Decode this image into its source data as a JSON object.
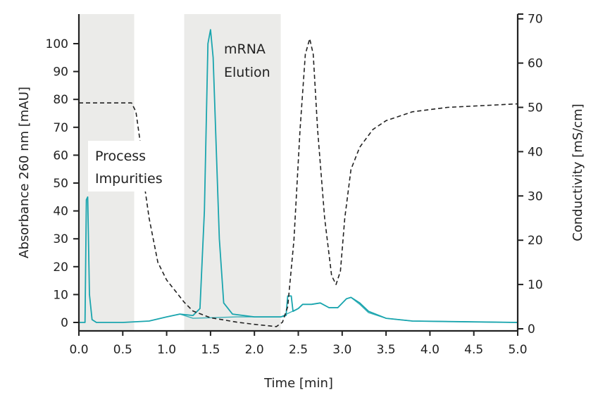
{
  "chart_data": {
    "type": "line",
    "xlabel": "Time [min]",
    "ylabel_left": "Absorbance 260 nm [mAU]",
    "ylabel_right": "Conductivity [mS/cm]",
    "xlim": [
      0,
      5
    ],
    "ylim_left": [
      -2,
      108
    ],
    "ylim_right": [
      0,
      70
    ],
    "x_ticks": [
      "0.0",
      "0.5",
      "1.0",
      "1.5",
      "2.0",
      "2.5",
      "3.0",
      "3.5",
      "4.0",
      "4.5",
      "5.0"
    ],
    "y_left_ticks": [
      "0",
      "10",
      "20",
      "30",
      "40",
      "50",
      "60",
      "70",
      "80",
      "90",
      "100"
    ],
    "y_right_ticks": [
      "0",
      "10",
      "20",
      "30",
      "40",
      "50",
      "60",
      "70"
    ],
    "grid": false,
    "colors": {
      "absorbance": "#1aa5ae",
      "conductivity": "#222222",
      "shade": "#ebebe9"
    },
    "regions": [
      {
        "label_lines": [
          "Process",
          "Impurities"
        ],
        "x": [
          0,
          0.63
        ]
      },
      {
        "label_lines": [
          "mRNA",
          "Elution"
        ],
        "x": [
          1.2,
          2.3
        ]
      }
    ],
    "series": [
      {
        "axis": "left",
        "style": "solid",
        "x": [
          0,
          0.07,
          0.085,
          0.1,
          0.12,
          0.15,
          0.2,
          0.5,
          0.8,
          1.0,
          1.15,
          1.3,
          1.38,
          1.43,
          1.47,
          1.5,
          1.53,
          1.6,
          1.65,
          1.75,
          2.0,
          2.3,
          2.36,
          2.38,
          2.42,
          2.44,
          2.5,
          2.55,
          2.65,
          2.75,
          2.85,
          2.95,
          3.05,
          3.1,
          3.2,
          3.3,
          3.5,
          3.8,
          4.5,
          5.0
        ],
        "y": [
          0,
          0,
          44,
          45,
          10,
          1,
          0,
          0,
          0.5,
          2,
          3,
          2.5,
          5,
          40,
          100,
          105,
          95,
          30,
          7,
          3,
          2,
          2,
          2.5,
          9.5,
          9.5,
          4,
          5,
          6.5,
          6.5,
          7,
          5.3,
          5.3,
          8.5,
          9,
          7,
          4,
          1.5,
          0.5,
          0.2,
          0
        ]
      },
      {
        "axis": "left",
        "style": "solid-faint",
        "x": [
          1.15,
          1.3,
          1.6,
          1.8,
          2.3,
          2.4,
          2.5,
          2.55,
          2.65,
          2.75,
          2.85,
          2.95,
          3.05,
          3.1,
          3.2,
          3.3,
          3.5,
          3.8,
          4.5,
          5.0
        ],
        "y": [
          3,
          1.5,
          1.8,
          2,
          2,
          3.5,
          5,
          6.5,
          6.5,
          7,
          5.3,
          5.3,
          8.5,
          9,
          6.5,
          3.5,
          1.5,
          0.5,
          0.2,
          0
        ]
      },
      {
        "axis": "right",
        "style": "dashed",
        "x": [
          0,
          0.6,
          0.65,
          0.7,
          0.75,
          0.8,
          0.9,
          1.0,
          1.1,
          1.2,
          1.3,
          1.5,
          1.8,
          2.0,
          2.25,
          2.32,
          2.38,
          2.45,
          2.52,
          2.58,
          2.63,
          2.67,
          2.72,
          2.8,
          2.88,
          2.93,
          2.98,
          3.03,
          3.1,
          3.2,
          3.35,
          3.5,
          3.8,
          4.2,
          5.0
        ],
        "y": [
          51,
          51,
          49,
          42,
          32,
          25,
          15,
          11,
          8.5,
          6,
          4,
          2.5,
          1.5,
          1,
          0.5,
          1.5,
          5,
          20,
          45,
          62,
          65.5,
          62,
          45,
          25,
          12,
          10,
          13,
          25,
          36,
          41,
          45,
          47,
          49,
          50,
          50.8
        ]
      }
    ]
  }
}
